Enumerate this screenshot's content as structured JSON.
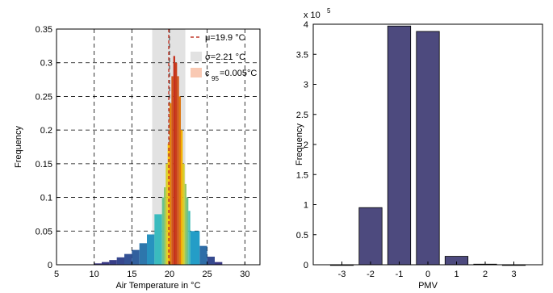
{
  "chart_data": [
    {
      "type": "bar",
      "xlabel": "Air Temperature in °C",
      "ylabel": "Frequency",
      "xlim": [
        5,
        32
      ],
      "ylim": [
        0,
        0.35
      ],
      "xticks": [
        5,
        10,
        15,
        20,
        25,
        30
      ],
      "xtick_labels": [
        "5",
        "10",
        "15",
        "20",
        "25",
        "30"
      ],
      "yticks": [
        0,
        0.05,
        0.1,
        0.15,
        0.2,
        0.25,
        0.3,
        0.35
      ],
      "ytick_labels": [
        "0",
        "0.05",
        "0.1",
        "0.15",
        "0.2",
        "0.25",
        "0.3",
        "0.35"
      ],
      "grid": true,
      "legend_position": "top-right",
      "legend": [
        {
          "label": "μ=19.9 °C",
          "color": "#c0392b",
          "style": "dashed-line"
        },
        {
          "label": "σ=2.21 °C",
          "color": "#e2e2e2",
          "style": "patch"
        },
        {
          "label_main": "c",
          "label_sub": "95",
          "label_rest": "=0.005°C",
          "color": "#f9c9b3",
          "style": "patch"
        }
      ],
      "mean": 19.9,
      "sigma": 2.21,
      "band": [
        17.7,
        22.1
      ],
      "series": [
        {
          "bin_width": 1,
          "x": [
            10,
            11,
            12,
            13,
            14,
            15,
            16,
            17,
            18,
            23,
            24,
            25,
            26
          ],
          "values": [
            0.002,
            0.004,
            0.007,
            0.011,
            0.016,
            0.022,
            0.032,
            0.045,
            0.075,
            0.05,
            0.028,
            0.012,
            0.004
          ]
        },
        {
          "bin_width": 0.25,
          "x": [
            19,
            19.25,
            19.5,
            19.75,
            20,
            20.25,
            20.5,
            20.75,
            21,
            21.25,
            21.5,
            21.75,
            22,
            22.25,
            22.5,
            22.75
          ],
          "values": [
            0.1,
            0.115,
            0.15,
            0.18,
            0.24,
            0.28,
            0.31,
            0.3,
            0.28,
            0.25,
            0.2,
            0.15,
            0.12,
            0.1,
            0.08,
            0.05
          ]
        }
      ],
      "colors": {
        "low": "#3b2f7e",
        "mid": "#1fb8d8",
        "high": "#ffd400",
        "peak": "#c4311d",
        "mean_line": "#c0392b",
        "band": "#e2e2e2"
      }
    },
    {
      "type": "bar",
      "xlabel": "PMV",
      "ylabel": "Frequency",
      "y_scale_label_main": "x 10",
      "y_scale_label_exp": "5",
      "categories": [
        "-3",
        "-2",
        "-1",
        "0",
        "1",
        "2",
        "3"
      ],
      "x": [
        -3,
        -2,
        -1,
        0,
        1,
        2,
        3
      ],
      "values": [
        0.0,
        0.95,
        3.97,
        3.88,
        0.14,
        0.01,
        0.0
      ],
      "xlim": [
        -4,
        4
      ],
      "ylim": [
        0,
        4
      ],
      "yticks": [
        0,
        0.5,
        1,
        1.5,
        2,
        2.5,
        3,
        3.5,
        4
      ],
      "ytick_labels": [
        "0",
        "0.5",
        "1",
        "1.5",
        "2",
        "2.5",
        "3",
        "3.5",
        "4"
      ],
      "grid": false,
      "bar_color": "#4d4a7e"
    }
  ]
}
